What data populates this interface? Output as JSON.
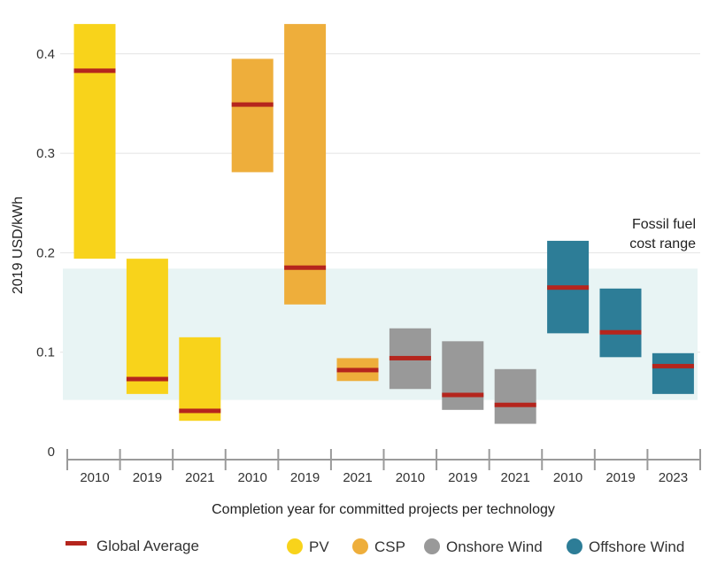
{
  "chart_data": {
    "type": "range_bar",
    "ylabel": "2019 USD/kWh",
    "xlabel": "Completion year for committed projects per technology",
    "ylim": [
      0,
      0.43
    ],
    "yticks": [
      {
        "value": 0,
        "label": "0"
      },
      {
        "value": 0.1,
        "label": "0.1"
      },
      {
        "value": 0.2,
        "label": "0.2"
      },
      {
        "value": 0.3,
        "label": "0.3"
      },
      {
        "value": 0.4,
        "label": "0.4"
      }
    ],
    "band": {
      "low": 0.052,
      "high": 0.184,
      "label_lines": [
        "Fossil fuel",
        "cost range"
      ],
      "color": "#e8f4f4"
    },
    "average_label": "Global Average",
    "average_color": "#b5251d",
    "series": [
      {
        "name": "PV",
        "color": "#f8d31b"
      },
      {
        "name": "CSP",
        "color": "#eeae3b"
      },
      {
        "name": "Onshore Wind",
        "color": "#999999"
      },
      {
        "name": "Offshore Wind",
        "color": "#2d7d97"
      }
    ],
    "bars": [
      {
        "series": 0,
        "category": "2010",
        "low": 0.194,
        "high": 0.43,
        "avg": 0.383
      },
      {
        "series": 0,
        "category": "2019",
        "low": 0.058,
        "high": 0.194,
        "avg": 0.073
      },
      {
        "series": 0,
        "category": "2021",
        "low": 0.031,
        "high": 0.115,
        "avg": 0.041
      },
      {
        "series": 1,
        "category": "2010",
        "low": 0.281,
        "high": 0.395,
        "avg": 0.349
      },
      {
        "series": 1,
        "category": "2019",
        "low": 0.148,
        "high": 0.43,
        "avg": 0.185
      },
      {
        "series": 1,
        "category": "2021",
        "low": 0.071,
        "high": 0.094,
        "avg": 0.082
      },
      {
        "series": 2,
        "category": "2010",
        "low": 0.063,
        "high": 0.124,
        "avg": 0.094
      },
      {
        "series": 2,
        "category": "2019",
        "low": 0.042,
        "high": 0.111,
        "avg": 0.057
      },
      {
        "series": 2,
        "category": "2021",
        "low": 0.028,
        "high": 0.083,
        "avg": 0.047
      },
      {
        "series": 3,
        "category": "2010",
        "low": 0.119,
        "high": 0.212,
        "avg": 0.165
      },
      {
        "series": 3,
        "category": "2019",
        "low": 0.095,
        "high": 0.164,
        "avg": 0.12
      },
      {
        "series": 3,
        "category": "2023",
        "low": 0.058,
        "high": 0.099,
        "avg": 0.086
      }
    ]
  }
}
